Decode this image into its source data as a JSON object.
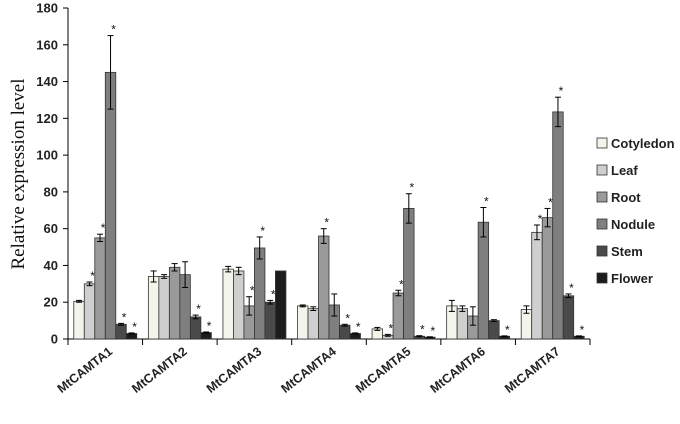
{
  "chart_data": {
    "type": "bar",
    "title": "",
    "xlabel": "",
    "ylabel": "Relative expression level",
    "ylim": [
      0,
      180
    ],
    "yticks": [
      0,
      20,
      40,
      60,
      80,
      100,
      120,
      140,
      160,
      180
    ],
    "grid": false,
    "legend_position": "right",
    "categories": [
      "MtCAMTA1",
      "MtCAMTA2",
      "MtCAMTA3",
      "MtCAMTA4",
      "MtCAMTA5",
      "MtCAMTA6",
      "MtCAMTA7"
    ],
    "series": [
      {
        "name": "Cotyledon",
        "color": "#f4f4ea",
        "values": [
          20.5,
          34,
          38,
          18,
          5.5,
          18,
          16
        ],
        "errors": [
          0.5,
          3,
          1.5,
          0.5,
          0.8,
          3,
          2
        ],
        "significant": [
          false,
          false,
          false,
          false,
          false,
          false,
          false
        ]
      },
      {
        "name": "Leaf",
        "color": "#cfcfcf",
        "values": [
          30,
          34,
          37,
          16.5,
          2,
          16.5,
          58
        ],
        "errors": [
          1,
          1,
          2,
          1,
          0.5,
          1.5,
          4
        ],
        "significant": [
          true,
          false,
          false,
          false,
          true,
          false,
          true
        ]
      },
      {
        "name": "Root",
        "color": "#9a9a9a",
        "values": [
          55,
          39,
          18,
          56,
          25,
          12.5,
          66
        ],
        "errors": [
          2,
          2,
          5,
          4,
          1.5,
          5,
          5
        ],
        "significant": [
          true,
          false,
          true,
          true,
          true,
          false,
          true
        ]
      },
      {
        "name": "Nodule",
        "color": "#7f7f7f",
        "values": [
          145,
          35,
          49.5,
          18.5,
          71,
          63.5,
          123.5
        ],
        "errors": [
          20,
          7,
          6,
          6,
          8,
          8,
          8
        ],
        "significant": [
          true,
          false,
          true,
          false,
          true,
          true,
          true
        ]
      },
      {
        "name": "Stem",
        "color": "#4a4a4a",
        "values": [
          8,
          12,
          20,
          7.5,
          1.5,
          10,
          23.5
        ],
        "errors": [
          0.5,
          1,
          1,
          0.5,
          0.3,
          0.5,
          1
        ],
        "significant": [
          true,
          true,
          true,
          true,
          true,
          false,
          true
        ]
      },
      {
        "name": "Flower",
        "color": "#1c1c1c",
        "values": [
          3,
          3.5,
          37,
          3,
          1,
          1.5,
          1.5
        ],
        "errors": [
          0.3,
          0.3,
          0,
          0.3,
          0.2,
          0.2,
          0.2
        ],
        "significant": [
          true,
          true,
          false,
          true,
          true,
          true,
          true
        ]
      }
    ],
    "significance_marker": "*"
  }
}
